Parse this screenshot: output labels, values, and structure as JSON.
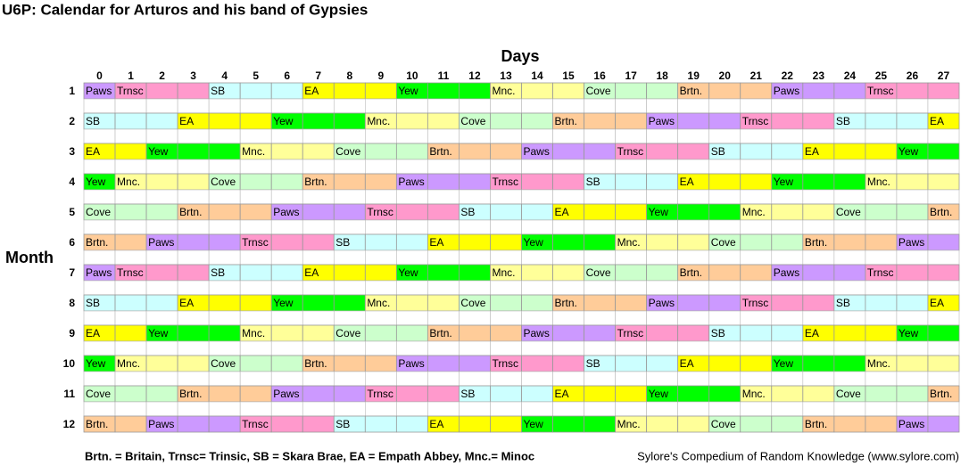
{
  "header": {
    "title": "U6P: Calendar for Arturos and his band of Gypsies"
  },
  "table": {
    "column_title": "Days",
    "row_title": "Month",
    "columns": [
      0,
      1,
      2,
      3,
      4,
      5,
      6,
      7,
      8,
      9,
      10,
      11,
      12,
      13,
      14,
      15,
      16,
      17,
      18,
      19,
      20,
      21,
      22,
      23,
      24,
      25,
      26,
      27
    ],
    "colors": {
      "Paws": "#cc99ff",
      "Trnsc": "#ff99cc",
      "SB": "#ccffff",
      "EA": "#ffff00",
      "Yew": "#00ff00",
      "Mnc.": "#ffff99",
      "Cove": "#ccffcc",
      "Brtn.": "#ffcc99"
    },
    "rows": [
      {
        "label": 1,
        "cells": [
          "Paws",
          "Trnsc",
          null,
          null,
          "SB",
          null,
          null,
          "EA",
          null,
          null,
          "Yew",
          null,
          null,
          "Mnc.",
          null,
          null,
          "Cove",
          null,
          null,
          "Brtn.",
          null,
          null,
          "Paws",
          null,
          null,
          "Trnsc",
          null,
          null
        ]
      },
      {
        "label": 2,
        "cells": [
          "SB",
          null,
          null,
          "EA",
          null,
          null,
          "Yew",
          null,
          null,
          "Mnc.",
          null,
          null,
          "Cove",
          null,
          null,
          "Brtn.",
          null,
          null,
          "Paws",
          null,
          null,
          "Trnsc",
          null,
          null,
          "SB",
          null,
          null,
          "EA"
        ]
      },
      {
        "label": 3,
        "cells": [
          "EA",
          null,
          "Yew",
          null,
          null,
          "Mnc.",
          null,
          null,
          "Cove",
          null,
          null,
          "Brtn.",
          null,
          null,
          "Paws",
          null,
          null,
          "Trnsc",
          null,
          null,
          "SB",
          null,
          null,
          "EA",
          null,
          null,
          "Yew",
          null
        ]
      },
      {
        "label": 4,
        "cells": [
          "Yew",
          "Mnc.",
          null,
          null,
          "Cove",
          null,
          null,
          "Brtn.",
          null,
          null,
          "Paws",
          null,
          null,
          "Trnsc",
          null,
          null,
          "SB",
          null,
          null,
          "EA",
          null,
          null,
          "Yew",
          null,
          null,
          "Mnc.",
          null,
          null
        ]
      },
      {
        "label": 5,
        "cells": [
          "Cove",
          null,
          null,
          "Brtn.",
          null,
          null,
          "Paws",
          null,
          null,
          "Trnsc",
          null,
          null,
          "SB",
          null,
          null,
          "EA",
          null,
          null,
          "Yew",
          null,
          null,
          "Mnc.",
          null,
          null,
          "Cove",
          null,
          null,
          "Brtn."
        ]
      },
      {
        "label": 6,
        "cells": [
          "Brtn.",
          null,
          "Paws",
          null,
          null,
          "Trnsc",
          null,
          null,
          "SB",
          null,
          null,
          "EA",
          null,
          null,
          "Yew",
          null,
          null,
          "Mnc.",
          null,
          null,
          "Cove",
          null,
          null,
          "Brtn.",
          null,
          null,
          "Paws",
          null
        ]
      },
      {
        "label": 7,
        "cells": [
          "Paws",
          "Trnsc",
          null,
          null,
          "SB",
          null,
          null,
          "EA",
          null,
          null,
          "Yew",
          null,
          null,
          "Mnc.",
          null,
          null,
          "Cove",
          null,
          null,
          "Brtn.",
          null,
          null,
          "Paws",
          null,
          null,
          "Trnsc",
          null,
          null
        ]
      },
      {
        "label": 8,
        "cells": [
          "SB",
          null,
          null,
          "EA",
          null,
          null,
          "Yew",
          null,
          null,
          "Mnc.",
          null,
          null,
          "Cove",
          null,
          null,
          "Brtn.",
          null,
          null,
          "Paws",
          null,
          null,
          "Trnsc",
          null,
          null,
          "SB",
          null,
          null,
          "EA"
        ]
      },
      {
        "label": 9,
        "cells": [
          "EA",
          null,
          "Yew",
          null,
          null,
          "Mnc.",
          null,
          null,
          "Cove",
          null,
          null,
          "Brtn.",
          null,
          null,
          "Paws",
          null,
          null,
          "Trnsc",
          null,
          null,
          "SB",
          null,
          null,
          "EA",
          null,
          null,
          "Yew",
          null
        ]
      },
      {
        "label": 10,
        "cells": [
          "Yew",
          "Mnc.",
          null,
          null,
          "Cove",
          null,
          null,
          "Brtn.",
          null,
          null,
          "Paws",
          null,
          null,
          "Trnsc",
          null,
          null,
          "SB",
          null,
          null,
          "EA",
          null,
          null,
          "Yew",
          null,
          null,
          "Mnc.",
          null,
          null
        ]
      },
      {
        "label": 11,
        "cells": [
          "Cove",
          null,
          null,
          "Brtn.",
          null,
          null,
          "Paws",
          null,
          null,
          "Trnsc",
          null,
          null,
          "SB",
          null,
          null,
          "EA",
          null,
          null,
          "Yew",
          null,
          null,
          "Mnc.",
          null,
          null,
          "Cove",
          null,
          null,
          "Brtn."
        ]
      },
      {
        "label": 12,
        "cells": [
          "Brtn.",
          null,
          "Paws",
          null,
          null,
          "Trnsc",
          null,
          null,
          "SB",
          null,
          null,
          "EA",
          null,
          null,
          "Yew",
          null,
          null,
          "Mnc.",
          null,
          null,
          "Cove",
          null,
          null,
          "Brtn.",
          null,
          null,
          "Paws",
          null
        ]
      }
    ]
  },
  "footer": {
    "legend": "Brtn. = Britain, Trnsc= Trinsic, SB = Skara Brae, EA = Empath Abbey, Mnc.= Minoc",
    "source": "Sylore's Compedium of Random Knowledge (www.sylore.com)"
  }
}
